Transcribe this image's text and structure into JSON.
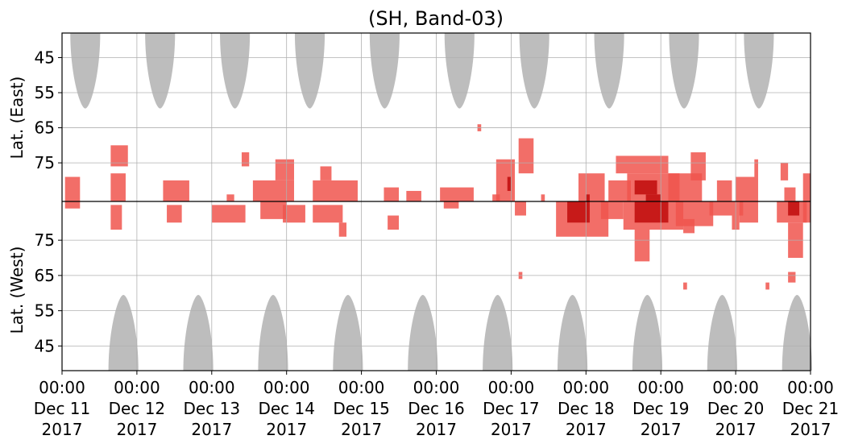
{
  "chart_data": {
    "type": "heatmap",
    "title": "(SH, Band-03)",
    "ylabel_top": "Lat. (East)",
    "ylabel_bottom": "Lat. (West)",
    "xlabel": "",
    "x_range_days": [
      0,
      10
    ],
    "y_range_top": [
      38,
      86
    ],
    "y_range_bottom": [
      86,
      38
    ],
    "x_ticks": [
      {
        "value": 0,
        "line1": "00:00",
        "line2": "Dec 11",
        "line3": "2017"
      },
      {
        "value": 1,
        "line1": "00:00",
        "line2": "Dec 12",
        "line3": "2017"
      },
      {
        "value": 2,
        "line1": "00:00",
        "line2": "Dec 13",
        "line3": "2017"
      },
      {
        "value": 3,
        "line1": "00:00",
        "line2": "Dec 14",
        "line3": "2017"
      },
      {
        "value": 4,
        "line1": "00:00",
        "line2": "Dec 15",
        "line3": "2017"
      },
      {
        "value": 5,
        "line1": "00:00",
        "line2": "Dec 16",
        "line3": "2017"
      },
      {
        "value": 6,
        "line1": "00:00",
        "line2": "Dec 17",
        "line3": "2017"
      },
      {
        "value": 7,
        "line1": "00:00",
        "line2": "Dec 18",
        "line3": "2017"
      },
      {
        "value": 8,
        "line1": "00:00",
        "line2": "Dec 19",
        "line3": "2017"
      },
      {
        "value": 9,
        "line1": "00:00",
        "line2": "Dec 20",
        "line3": "2017"
      },
      {
        "value": 10,
        "line1": "00:00",
        "line2": "Dec 21",
        "line3": "2017"
      }
    ],
    "y_ticks_top": [
      {
        "value": 45,
        "label": "45"
      },
      {
        "value": 55,
        "label": "55"
      },
      {
        "value": 65,
        "label": "65"
      },
      {
        "value": 75,
        "label": "75"
      }
    ],
    "y_ticks_bottom": [
      {
        "value": 75,
        "label": "75"
      },
      {
        "value": 65,
        "label": "65"
      },
      {
        "value": 55,
        "label": "55"
      },
      {
        "value": 45,
        "label": "45"
      }
    ],
    "grid": true,
    "colors": {
      "daylight": "#bdbdbd",
      "red_light": "#f0554d",
      "red_dark": "#c41515",
      "grid": "#b0b0b0",
      "axis": "#000000"
    },
    "daylight_regions": {
      "top": {
        "x_centers": [
          0.31,
          1.31,
          2.31,
          3.31,
          4.31,
          5.31,
          6.31,
          7.31,
          8.31,
          9.31
        ],
        "lat_edge": 59.5,
        "half_width_days": 0.2
      },
      "bottom": {
        "x_centers": [
          0.82,
          1.82,
          2.82,
          3.82,
          4.82,
          5.82,
          6.82,
          7.82,
          8.82,
          9.82
        ],
        "lat_edge": 59.5,
        "half_width_days": 0.2
      }
    },
    "echo_clusters": [
      {
        "hemi": "E",
        "x0": 0.04,
        "x1": 0.24,
        "lat0": 79,
        "lat1": 86,
        "level": 1
      },
      {
        "hemi": "W",
        "x0": 0.04,
        "x1": 0.24,
        "lat0": 84,
        "lat1": 86,
        "level": 1
      },
      {
        "hemi": "E",
        "x0": 0.65,
        "x1": 0.85,
        "lat0": 78,
        "lat1": 86,
        "level": 1
      },
      {
        "hemi": "E",
        "x0": 0.65,
        "x1": 0.88,
        "lat0": 70,
        "lat1": 76,
        "level": 1
      },
      {
        "hemi": "W",
        "x0": 0.65,
        "x1": 0.8,
        "lat0": 78,
        "lat1": 85,
        "level": 1
      },
      {
        "hemi": "E",
        "x0": 1.35,
        "x1": 1.7,
        "lat0": 80,
        "lat1": 86,
        "level": 1
      },
      {
        "hemi": "W",
        "x0": 1.4,
        "x1": 1.6,
        "lat0": 80,
        "lat1": 85,
        "level": 1
      },
      {
        "hemi": "E",
        "x0": 2.2,
        "x1": 2.3,
        "lat0": 84,
        "lat1": 86,
        "level": 1
      },
      {
        "hemi": "W",
        "x0": 2.0,
        "x1": 2.45,
        "lat0": 80,
        "lat1": 85,
        "level": 1
      },
      {
        "hemi": "E",
        "x0": 2.4,
        "x1": 2.5,
        "lat0": 72,
        "lat1": 76,
        "level": 1
      },
      {
        "hemi": "E",
        "x0": 2.55,
        "x1": 3.1,
        "lat0": 80,
        "lat1": 86,
        "level": 1
      },
      {
        "hemi": "W",
        "x0": 2.65,
        "x1": 3.0,
        "lat0": 81,
        "lat1": 86,
        "level": 1
      },
      {
        "hemi": "E",
        "x0": 2.85,
        "x1": 3.1,
        "lat0": 74,
        "lat1": 80,
        "level": 1
      },
      {
        "hemi": "W",
        "x0": 2.95,
        "x1": 3.25,
        "lat0": 80,
        "lat1": 85,
        "level": 1
      },
      {
        "hemi": "E",
        "x0": 3.35,
        "x1": 3.95,
        "lat0": 80,
        "lat1": 86,
        "level": 1
      },
      {
        "hemi": "E",
        "x0": 3.45,
        "x1": 3.6,
        "lat0": 76,
        "lat1": 80,
        "level": 1
      },
      {
        "hemi": "W",
        "x0": 3.35,
        "x1": 3.75,
        "lat0": 80,
        "lat1": 85,
        "level": 1
      },
      {
        "hemi": "W",
        "x0": 3.7,
        "x1": 3.8,
        "lat0": 76,
        "lat1": 80,
        "level": 1
      },
      {
        "hemi": "E",
        "x0": 4.3,
        "x1": 4.5,
        "lat0": 82,
        "lat1": 86,
        "level": 1
      },
      {
        "hemi": "W",
        "x0": 4.35,
        "x1": 4.5,
        "lat0": 78,
        "lat1": 82,
        "level": 1
      },
      {
        "hemi": "E",
        "x0": 4.6,
        "x1": 4.8,
        "lat0": 83,
        "lat1": 86,
        "level": 1
      },
      {
        "hemi": "E",
        "x0": 5.05,
        "x1": 5.5,
        "lat0": 82,
        "lat1": 86,
        "level": 1
      },
      {
        "hemi": "W",
        "x0": 5.1,
        "x1": 5.3,
        "lat0": 84,
        "lat1": 86,
        "level": 1
      },
      {
        "hemi": "E",
        "x0": 5.75,
        "x1": 5.85,
        "lat0": 84,
        "lat1": 86,
        "level": 1
      },
      {
        "hemi": "E",
        "x0": 5.55,
        "x1": 5.6,
        "lat0": 64,
        "lat1": 66,
        "level": 1
      },
      {
        "hemi": "E",
        "x0": 5.8,
        "x1": 6.05,
        "lat0": 74,
        "lat1": 86,
        "level": 1
      },
      {
        "hemi": "E",
        "x0": 5.95,
        "x1": 6.0,
        "lat0": 79,
        "lat1": 83,
        "level": 2
      },
      {
        "hemi": "E",
        "x0": 6.1,
        "x1": 6.3,
        "lat0": 68,
        "lat1": 78,
        "level": 1
      },
      {
        "hemi": "W",
        "x0": 6.05,
        "x1": 6.2,
        "lat0": 82,
        "lat1": 86,
        "level": 1
      },
      {
        "hemi": "E",
        "x0": 6.4,
        "x1": 6.45,
        "lat0": 84,
        "lat1": 86,
        "level": 1
      },
      {
        "hemi": "E",
        "x0": 6.9,
        "x1": 7.25,
        "lat0": 78,
        "lat1": 86,
        "level": 1
      },
      {
        "hemi": "W",
        "x0": 6.6,
        "x1": 7.3,
        "lat0": 76,
        "lat1": 86,
        "level": 1
      },
      {
        "hemi": "W",
        "x0": 6.75,
        "x1": 7.05,
        "lat0": 80,
        "lat1": 86,
        "level": 2
      },
      {
        "hemi": "E",
        "x0": 7.0,
        "x1": 7.05,
        "lat0": 84,
        "lat1": 86,
        "level": 2
      },
      {
        "hemi": "E",
        "x0": 7.3,
        "x1": 7.6,
        "lat0": 80,
        "lat1": 86,
        "level": 1
      },
      {
        "hemi": "W",
        "x0": 7.2,
        "x1": 7.5,
        "lat0": 81,
        "lat1": 86,
        "level": 1
      },
      {
        "hemi": "E",
        "x0": 7.4,
        "x1": 8.1,
        "lat0": 73,
        "lat1": 78,
        "level": 1
      },
      {
        "hemi": "E",
        "x0": 7.55,
        "x1": 8.25,
        "lat0": 78,
        "lat1": 86,
        "level": 1
      },
      {
        "hemi": "E",
        "x0": 7.65,
        "x1": 7.95,
        "lat0": 80,
        "lat1": 84,
        "level": 2
      },
      {
        "hemi": "E",
        "x0": 7.8,
        "x1": 8.0,
        "lat0": 84,
        "lat1": 86,
        "level": 2
      },
      {
        "hemi": "W",
        "x0": 7.5,
        "x1": 8.3,
        "lat0": 78,
        "lat1": 86,
        "level": 1
      },
      {
        "hemi": "W",
        "x0": 7.65,
        "x1": 8.1,
        "lat0": 80,
        "lat1": 86,
        "level": 2
      },
      {
        "hemi": "W",
        "x0": 7.65,
        "x1": 7.85,
        "lat0": 69,
        "lat1": 78,
        "level": 1
      },
      {
        "hemi": "E",
        "x0": 8.1,
        "x1": 8.55,
        "lat0": 78,
        "lat1": 86,
        "level": 1
      },
      {
        "hemi": "W",
        "x0": 8.2,
        "x1": 8.7,
        "lat0": 79,
        "lat1": 86,
        "level": 1
      },
      {
        "hemi": "W",
        "x0": 8.3,
        "x1": 8.45,
        "lat0": 77,
        "lat1": 81,
        "level": 1
      },
      {
        "hemi": "E",
        "x0": 8.4,
        "x1": 8.6,
        "lat0": 72,
        "lat1": 80,
        "level": 1
      },
      {
        "hemi": "E",
        "x0": 8.75,
        "x1": 8.95,
        "lat0": 80,
        "lat1": 86,
        "level": 1
      },
      {
        "hemi": "W",
        "x0": 8.65,
        "x1": 9.1,
        "lat0": 82,
        "lat1": 86,
        "level": 1
      },
      {
        "hemi": "W",
        "x0": 8.95,
        "x1": 9.05,
        "lat0": 78,
        "lat1": 82,
        "level": 1
      },
      {
        "hemi": "E",
        "x0": 9.0,
        "x1": 9.3,
        "lat0": 79,
        "lat1": 86,
        "level": 1
      },
      {
        "hemi": "E",
        "x0": 9.25,
        "x1": 9.3,
        "lat0": 74,
        "lat1": 79,
        "level": 1
      },
      {
        "hemi": "W",
        "x0": 9.05,
        "x1": 9.3,
        "lat0": 80,
        "lat1": 86,
        "level": 1
      },
      {
        "hemi": "E",
        "x0": 9.6,
        "x1": 9.7,
        "lat0": 75,
        "lat1": 80,
        "level": 1
      },
      {
        "hemi": "E",
        "x0": 9.65,
        "x1": 9.8,
        "lat0": 82,
        "lat1": 86,
        "level": 1
      },
      {
        "hemi": "W",
        "x0": 9.55,
        "x1": 9.95,
        "lat0": 80,
        "lat1": 86,
        "level": 1
      },
      {
        "hemi": "W",
        "x0": 9.7,
        "x1": 9.85,
        "lat0": 82,
        "lat1": 86,
        "level": 2
      },
      {
        "hemi": "W",
        "x0": 9.7,
        "x1": 9.9,
        "lat0": 70,
        "lat1": 80,
        "level": 1
      },
      {
        "hemi": "W",
        "x0": 9.9,
        "x1": 10.0,
        "lat0": 80,
        "lat1": 86,
        "level": 1
      },
      {
        "hemi": "E",
        "x0": 9.9,
        "x1": 10.0,
        "lat0": 78,
        "lat1": 86,
        "level": 1
      },
      {
        "hemi": "W",
        "x0": 9.7,
        "x1": 9.8,
        "lat0": 63,
        "lat1": 66,
        "level": 1
      },
      {
        "hemi": "W",
        "x0": 9.4,
        "x1": 9.45,
        "lat0": 61,
        "lat1": 63,
        "level": 1
      },
      {
        "hemi": "W",
        "x0": 6.1,
        "x1": 6.15,
        "lat0": 64,
        "lat1": 66,
        "level": 1
      },
      {
        "hemi": "W",
        "x0": 8.3,
        "x1": 8.35,
        "lat0": 61,
        "lat1": 63,
        "level": 1
      }
    ]
  }
}
